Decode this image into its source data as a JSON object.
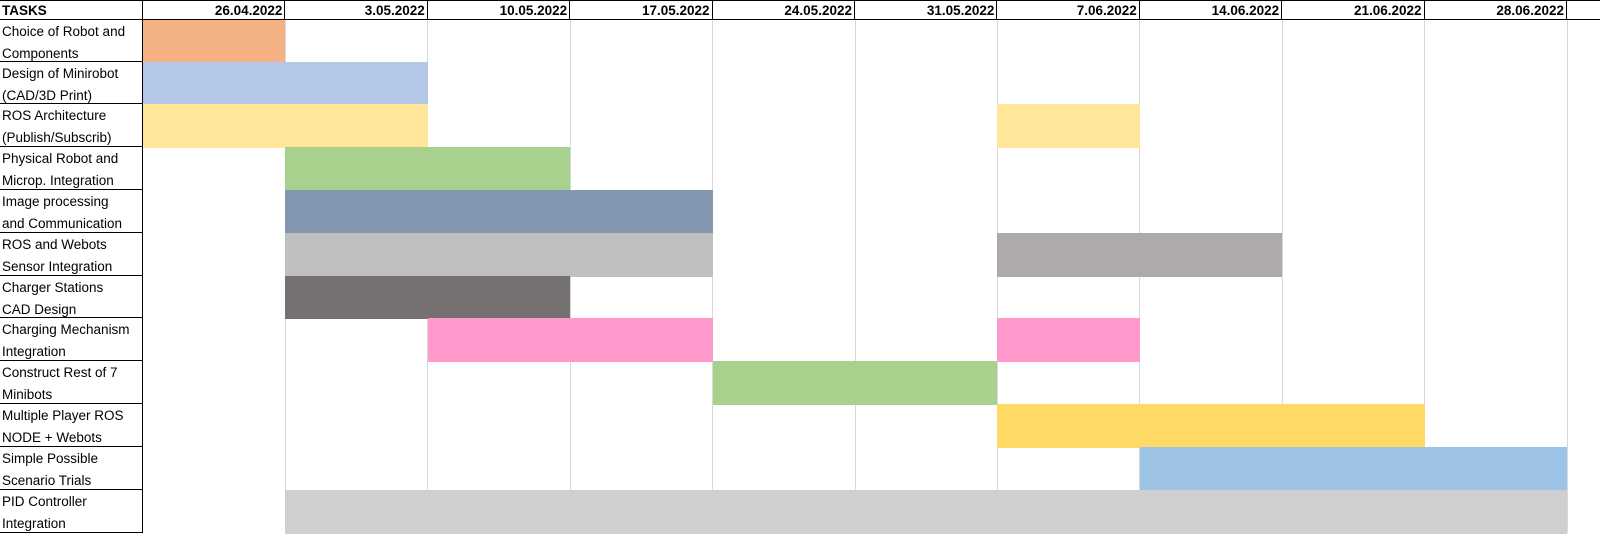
{
  "chart_data": {
    "type": "gantt",
    "header_label": "TASKS",
    "dates": [
      "26.04.2022",
      "3.05.2022",
      "10.05.2022",
      "17.05.2022",
      "24.05.2022",
      "31.05.2022",
      "7.06.2022",
      "14.06.2022",
      "21.06.2022",
      "28.06.2022"
    ],
    "tasks": [
      {
        "label": "Choice of Robot and\nComponents",
        "bars": [
          {
            "start": "19.04.2022",
            "end": "26.04.2022",
            "color": "#f4b183"
          }
        ]
      },
      {
        "label": "Design of Minirobot\n(CAD/3D Print)",
        "bars": [
          {
            "start": "19.04.2022",
            "end": "3.05.2022",
            "color": "#b4c7e7"
          }
        ]
      },
      {
        "label": "ROS Architecture\n(Publish/Subscrib)",
        "bars": [
          {
            "start": "19.04.2022",
            "end": "3.05.2022",
            "color": "#ffe699"
          },
          {
            "start": "31.05.2022",
            "end": "7.06.2022",
            "color": "#ffe699"
          }
        ]
      },
      {
        "label": "Physical Robot and\nMicrop. Integration",
        "bars": [
          {
            "start": "26.04.2022",
            "end": "10.05.2022",
            "color": "#a9d18e"
          }
        ]
      },
      {
        "label": "Image processing\nand Communication",
        "bars": [
          {
            "start": "26.04.2022",
            "end": "17.05.2022",
            "color": "#8497b0"
          }
        ]
      },
      {
        "label": "ROS and Webots\nSensor Integration",
        "bars": [
          {
            "start": "26.04.2022",
            "end": "17.05.2022",
            "color": "#bfbfbf"
          },
          {
            "start": "31.05.2022",
            "end": "14.06.2022",
            "color": "#aeaaaa"
          }
        ]
      },
      {
        "label": "Charger Stations\nCAD Design",
        "bars": [
          {
            "start": "26.04.2022",
            "end": "10.05.2022",
            "color": "#767171"
          }
        ]
      },
      {
        "label": "Charging Mechanism\nIntegration",
        "bars": [
          {
            "start": "3.05.2022",
            "end": "17.05.2022",
            "color": "#ff99cc"
          },
          {
            "start": "31.05.2022",
            "end": "7.06.2022",
            "color": "#ff99cc"
          }
        ]
      },
      {
        "label": "Construct Rest of 7\nMinibots",
        "bars": [
          {
            "start": "17.05.2022",
            "end": "31.05.2022",
            "color": "#a9d18e"
          }
        ]
      },
      {
        "label": "Multiple Player ROS\nNODE + Webots",
        "bars": [
          {
            "start": "31.05.2022",
            "end": "21.06.2022",
            "color": "#ffd966"
          }
        ]
      },
      {
        "label": "Simple Possible\nScenario Trials",
        "bars": [
          {
            "start": "7.06.2022",
            "end": "28.06.2022",
            "color": "#9dc3e6"
          }
        ]
      },
      {
        "label": "PID Controller\nIntegration",
        "bars": [
          {
            "start": "26.04.2022",
            "end": "28.06.2022",
            "color": "#d0cece"
          }
        ]
      }
    ]
  }
}
